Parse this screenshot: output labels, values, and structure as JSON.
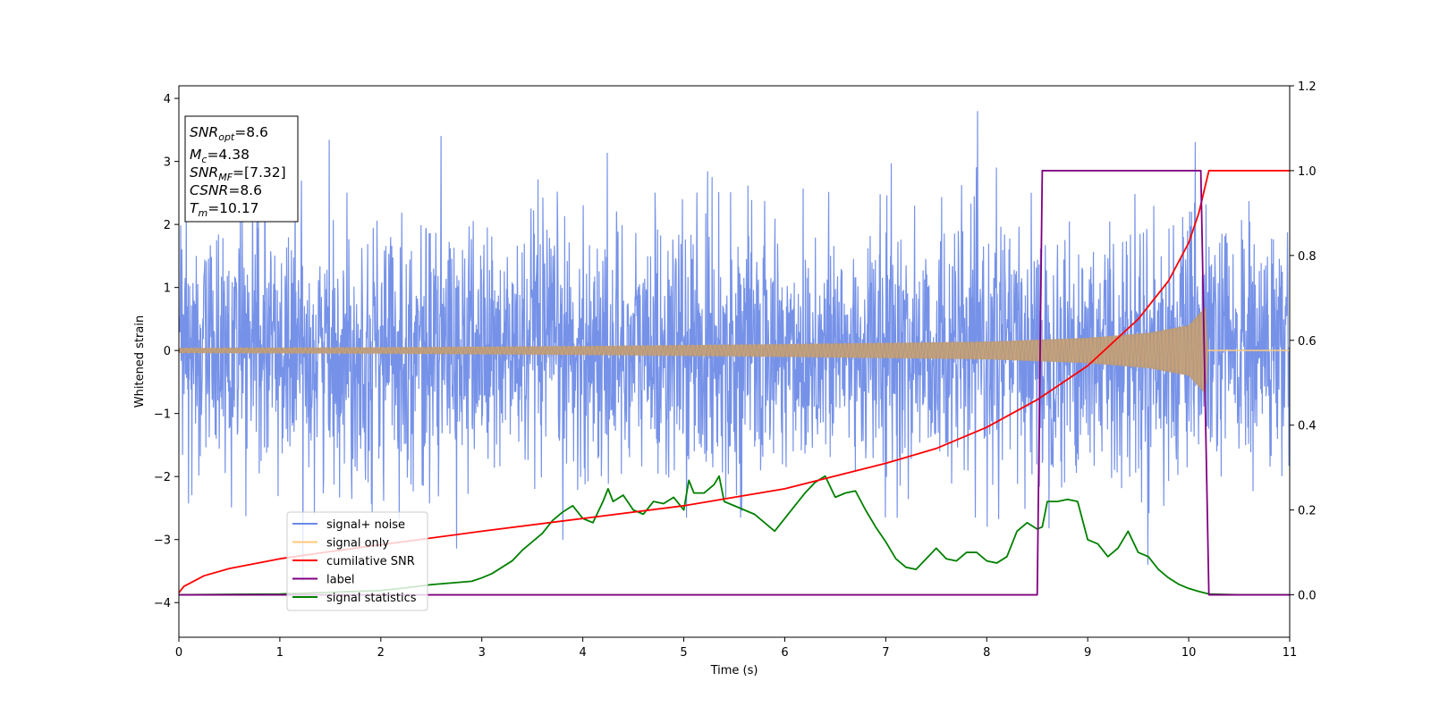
{
  "chart_data": {
    "type": "line",
    "xlabel": "Time (s)",
    "ylabel": "Whitened strain",
    "xlim": [
      0,
      11
    ],
    "ylim_left": [
      -4.55,
      4.2
    ],
    "ylim_right": [
      -0.1,
      1.2
    ],
    "x_ticks": [
      "0",
      "1",
      "2",
      "3",
      "4",
      "5",
      "6",
      "7",
      "8",
      "9",
      "10",
      "11"
    ],
    "y_left_ticks": [
      "−4",
      "−3",
      "−2",
      "−1",
      "0",
      "1",
      "2",
      "3",
      "4"
    ],
    "y_right_ticks": [
      "0.0",
      "0.2",
      "0.4",
      "0.6",
      "0.8",
      "1.0",
      "1.2"
    ],
    "legend": {
      "placement": "lower-left",
      "entries": [
        {
          "label": "signal+ noise",
          "color": "#6a89e6"
        },
        {
          "label": "signal only",
          "color": "#ffc87a"
        },
        {
          "label": "cumilative SNR",
          "color": "#ff0000"
        },
        {
          "label": "label",
          "color": "#800080"
        },
        {
          "label": "signal statistics",
          "color": "#008000"
        }
      ]
    },
    "info_box": {
      "snr_opt": {
        "main": "SNR",
        "sub": "opt",
        "value": "=8.6"
      },
      "mc": {
        "main": "M",
        "sub": "c",
        "value": "=4.38"
      },
      "snr_mf": {
        "main": "SNR",
        "sub": "MF",
        "value": "=[7.32]"
      },
      "csnr": {
        "main": "CSNR",
        "value": "=8.6"
      },
      "tm": {
        "main": "T",
        "sub": "m",
        "value": "=10.17"
      }
    },
    "series": [
      {
        "name": "signal+ noise",
        "axis": "left",
        "color": "#6a89e6",
        "noise_sigma": 1.0,
        "y_range": [
          -4.15,
          3.8
        ]
      },
      {
        "name": "signal only",
        "axis": "left",
        "color": "#ffc87a",
        "amplitude": [
          [
            0,
            0.04
          ],
          [
            2,
            0.05
          ],
          [
            4,
            0.07
          ],
          [
            6,
            0.1
          ],
          [
            8,
            0.14
          ],
          [
            9,
            0.2
          ],
          [
            9.6,
            0.28
          ],
          [
            10.0,
            0.4
          ],
          [
            10.17,
            0.7
          ],
          [
            10.19,
            0.0
          ],
          [
            11,
            0.0
          ]
        ]
      },
      {
        "name": "cumilative SNR",
        "axis": "right",
        "color": "#ff0000",
        "x": [
          0,
          0.05,
          0.25,
          0.5,
          1,
          1.5,
          2,
          3,
          4,
          5,
          6,
          7,
          7.5,
          8,
          8.5,
          9,
          9.5,
          9.8,
          10.0,
          10.1,
          10.2,
          11
        ],
        "y": [
          0.005,
          0.02,
          0.045,
          0.062,
          0.085,
          0.102,
          0.118,
          0.15,
          0.18,
          0.21,
          0.25,
          0.31,
          0.345,
          0.395,
          0.46,
          0.54,
          0.65,
          0.74,
          0.83,
          0.9,
          1.0,
          1.0
        ]
      },
      {
        "name": "label",
        "axis": "right",
        "color": "#800080",
        "x": [
          0,
          8.5,
          8.55,
          10.12,
          10.2,
          11
        ],
        "y": [
          0,
          0,
          1,
          1,
          0,
          0
        ]
      },
      {
        "name": "signal statistics",
        "axis": "right",
        "color": "#008000",
        "x": [
          0,
          1,
          2,
          2.3,
          2.5,
          2.7,
          2.9,
          3.0,
          3.1,
          3.2,
          3.3,
          3.4,
          3.5,
          3.6,
          3.7,
          3.8,
          3.9,
          4.0,
          4.1,
          4.2,
          4.25,
          4.3,
          4.4,
          4.5,
          4.6,
          4.7,
          4.8,
          4.9,
          5.0,
          5.05,
          5.1,
          5.2,
          5.3,
          5.35,
          5.4,
          5.5,
          5.6,
          5.7,
          5.8,
          5.9,
          6.0,
          6.1,
          6.2,
          6.3,
          6.4,
          6.5,
          6.6,
          6.7,
          6.8,
          6.9,
          7.0,
          7.1,
          7.2,
          7.3,
          7.4,
          7.5,
          7.6,
          7.7,
          7.8,
          7.9,
          8.0,
          8.1,
          8.2,
          8.3,
          8.4,
          8.5,
          8.55,
          8.6,
          8.7,
          8.8,
          8.9,
          9.0,
          9.1,
          9.2,
          9.3,
          9.4,
          9.5,
          9.6,
          9.7,
          9.8,
          9.9,
          10.0,
          10.1,
          10.2,
          10.5,
          11
        ],
        "y": [
          0,
          0.002,
          0.01,
          0.018,
          0.024,
          0.028,
          0.032,
          0.04,
          0.05,
          0.065,
          0.08,
          0.105,
          0.125,
          0.145,
          0.175,
          0.195,
          0.21,
          0.18,
          0.17,
          0.22,
          0.25,
          0.22,
          0.235,
          0.2,
          0.19,
          0.22,
          0.215,
          0.23,
          0.2,
          0.27,
          0.24,
          0.24,
          0.26,
          0.28,
          0.22,
          0.21,
          0.2,
          0.19,
          0.17,
          0.15,
          0.18,
          0.21,
          0.24,
          0.265,
          0.28,
          0.23,
          0.24,
          0.245,
          0.2,
          0.16,
          0.125,
          0.085,
          0.065,
          0.06,
          0.085,
          0.11,
          0.085,
          0.08,
          0.1,
          0.1,
          0.08,
          0.075,
          0.09,
          0.15,
          0.17,
          0.155,
          0.16,
          0.22,
          0.22,
          0.225,
          0.22,
          0.13,
          0.12,
          0.09,
          0.11,
          0.15,
          0.1,
          0.09,
          0.06,
          0.04,
          0.025,
          0.015,
          0.008,
          0.002,
          0.0,
          0.0
        ]
      }
    ]
  }
}
